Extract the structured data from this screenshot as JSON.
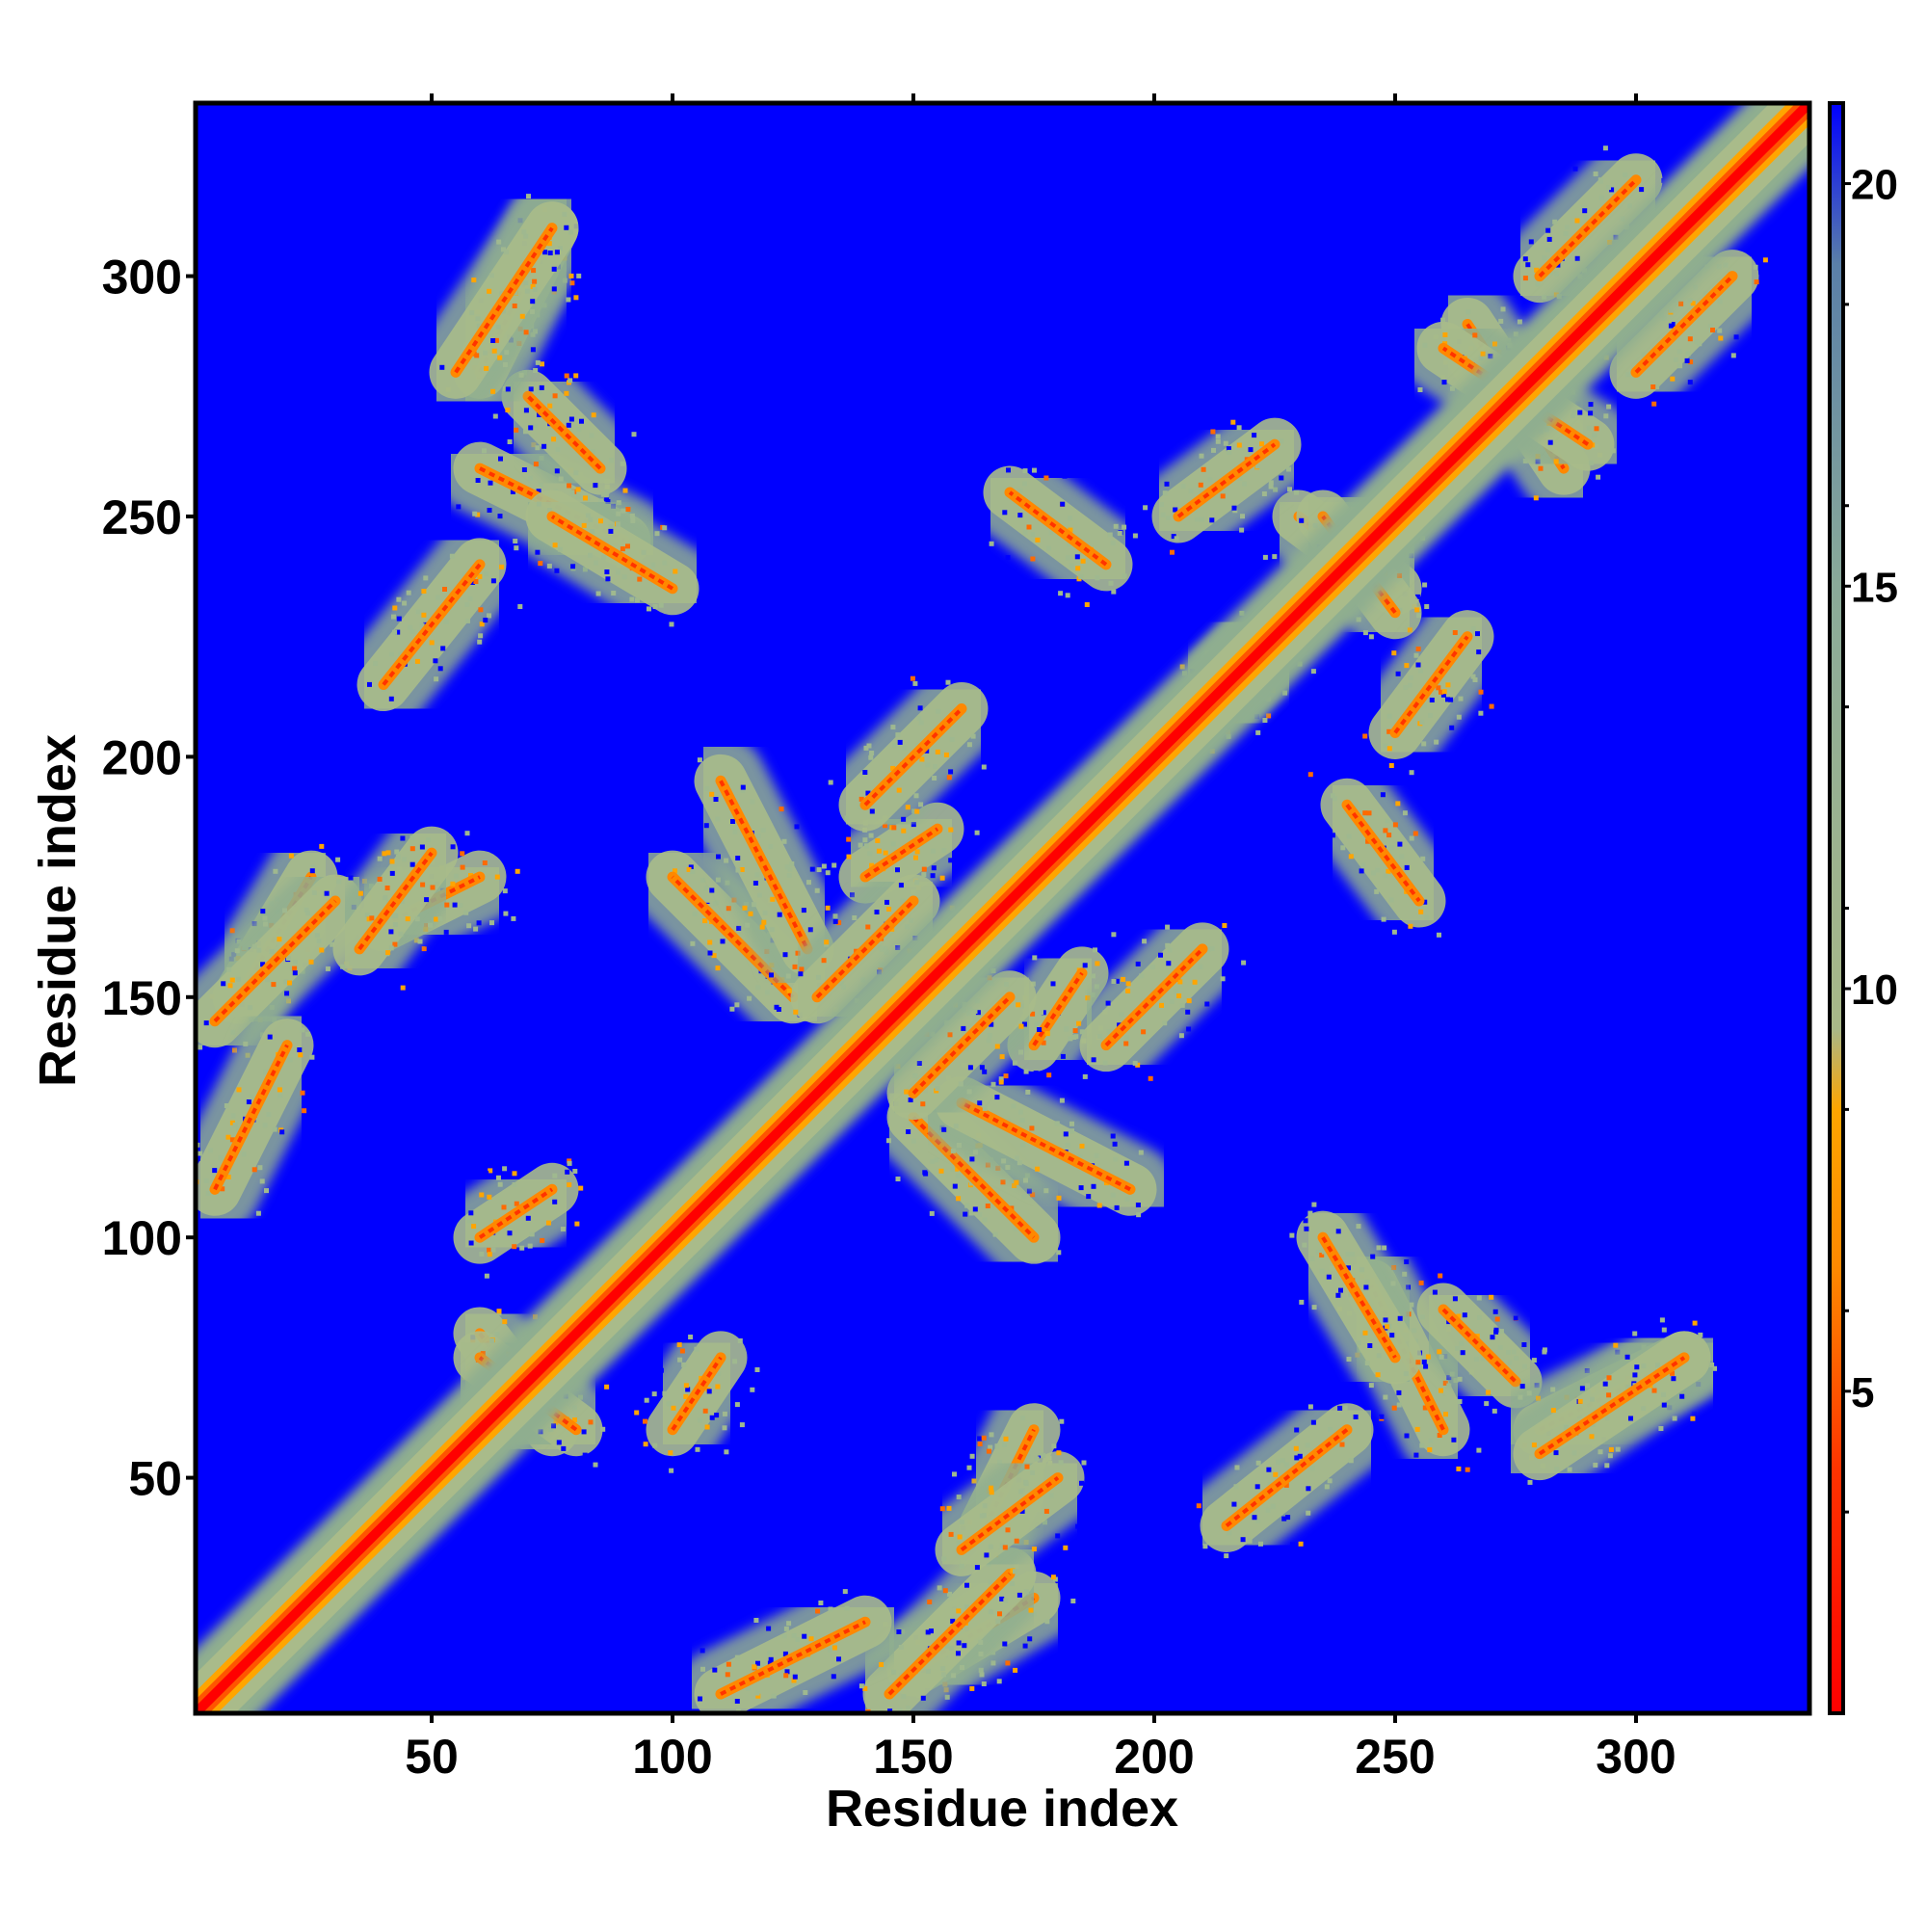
{
  "chart_data": {
    "type": "heatmap",
    "title": "",
    "xlabel": "Residue index",
    "ylabel": "Residue index",
    "xlim": [
      1,
      336
    ],
    "ylim": [
      1,
      336
    ],
    "x_ticks": [
      50,
      100,
      150,
      200,
      250,
      300
    ],
    "y_ticks": [
      50,
      100,
      150,
      200,
      250,
      300
    ],
    "colorbar": {
      "range": [
        1,
        21
      ],
      "ticks": [
        5,
        10,
        15,
        20
      ],
      "stops": [
        {
          "value": 1,
          "color": "#ff0000"
        },
        {
          "value": 4,
          "color": "#ff3300"
        },
        {
          "value": 6.5,
          "color": "#ff8800"
        },
        {
          "value": 8.5,
          "color": "#ffa500"
        },
        {
          "value": 9.5,
          "color": "#a8b888"
        },
        {
          "value": 15,
          "color": "#8aaa99"
        },
        {
          "value": 19,
          "color": "#5a7fa8"
        },
        {
          "value": 21,
          "color": "#0000ff"
        }
      ]
    },
    "background_color": "#0000ff",
    "diagonal_color": "#ff0000",
    "grid": false,
    "contact_features": [
      {
        "x": [
          150,
          175
        ],
        "y": [
          125,
          100
        ],
        "kind": "antiparallel"
      },
      {
        "x": [
          110,
          128
        ],
        "y": [
          195,
          160
        ],
        "kind": "antiparallel"
      },
      {
        "x": [
          175,
          185
        ],
        "y": [
          140,
          155
        ],
        "kind": "parallel"
      },
      {
        "x": [
          60,
          90
        ],
        "y": [
          260,
          245
        ],
        "kind": "antiparallel"
      },
      {
        "x": [
          230,
          250
        ],
        "y": [
          250,
          235
        ],
        "kind": "antiparallel"
      },
      {
        "x": [
          265,
          285
        ],
        "y": [
          290,
          260
        ],
        "kind": "antiparallel"
      },
      {
        "x": [
          240,
          255
        ],
        "y": [
          190,
          170
        ],
        "kind": "antiparallel"
      },
      {
        "x": [
          260,
          275
        ],
        "y": [
          85,
          70
        ],
        "kind": "antiparallel"
      },
      {
        "x": [
          235,
          250
        ],
        "y": [
          100,
          75
        ],
        "kind": "antiparallel"
      },
      {
        "x": [
          60,
          75
        ],
        "y": [
          80,
          60
        ],
        "kind": "antiparallel"
      },
      {
        "x": [
          100,
          110
        ],
        "y": [
          60,
          75
        ],
        "kind": "parallel"
      },
      {
        "x": [
          150,
          175
        ],
        "y": [
          10,
          25
        ],
        "kind": "parallel"
      },
      {
        "x": [
          5,
          30
        ],
        "y": [
          145,
          170
        ],
        "kind": "parallel"
      },
      {
        "x": [
          40,
          60
        ],
        "y": [
          165,
          175
        ],
        "kind": "parallel"
      },
      {
        "x": [
          205,
          225
        ],
        "y": [
          250,
          265
        ],
        "kind": "parallel"
      },
      {
        "x": [
          210,
          225
        ],
        "y": [
          210,
          225
        ],
        "kind": "parallel"
      },
      {
        "x": [
          60,
          75
        ],
        "y": [
          280,
          310
        ],
        "kind": "parallel"
      },
      {
        "x": [
          215,
          240
        ],
        "y": [
          40,
          60
        ],
        "kind": "parallel"
      },
      {
        "x": [
          280,
          310
        ],
        "y": [
          55,
          75
        ],
        "kind": "parallel"
      },
      {
        "x": [
          160,
          180
        ],
        "y": [
          35,
          50
        ],
        "kind": "parallel"
      },
      {
        "x": [
          110,
          140
        ],
        "y": [
          5,
          20
        ],
        "kind": "parallel"
      },
      {
        "x": [
          140,
          160
        ],
        "y": [
          190,
          210
        ],
        "kind": "parallel"
      },
      {
        "x": [
          130,
          150
        ],
        "y": [
          150,
          170
        ],
        "kind": "parallel"
      },
      {
        "x": [
          280,
          300
        ],
        "y": [
          300,
          320
        ],
        "kind": "parallel"
      }
    ]
  }
}
